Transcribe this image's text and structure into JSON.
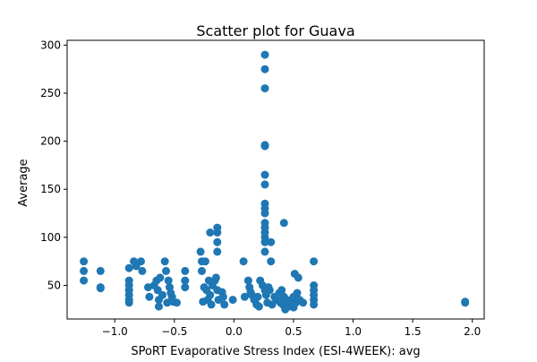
{
  "chart_data": {
    "type": "scatter",
    "title": "Scatter plot for Guava",
    "xlabel": "SPoRT Evaporative Stress Index (ESI-4WEEK): avg",
    "ylabel": "Average",
    "xlim": [
      -1.4,
      2.1
    ],
    "ylim": [
      15,
      305
    ],
    "xticks": [
      -1.0,
      -0.5,
      0.0,
      0.5,
      1.0,
      1.5,
      2.0
    ],
    "xtick_labels": [
      "−1.0",
      "−0.5",
      "0.0",
      "0.5",
      "1.0",
      "1.5",
      "2.0"
    ],
    "yticks": [
      50,
      100,
      150,
      200,
      250,
      300
    ],
    "ytick_labels": [
      "50",
      "100",
      "150",
      "200",
      "250",
      "300"
    ],
    "grid": false,
    "marker_color": "#1f77b4",
    "points": [
      {
        "x": -1.26,
        "y": 75
      },
      {
        "x": -1.26,
        "y": 65
      },
      {
        "x": -1.26,
        "y": 55
      },
      {
        "x": -1.12,
        "y": 65
      },
      {
        "x": -1.12,
        "y": 48
      },
      {
        "x": -1.12,
        "y": 47
      },
      {
        "x": -0.88,
        "y": 68
      },
      {
        "x": -0.88,
        "y": 55
      },
      {
        "x": -0.88,
        "y": 50
      },
      {
        "x": -0.88,
        "y": 45
      },
      {
        "x": -0.88,
        "y": 40
      },
      {
        "x": -0.88,
        "y": 35
      },
      {
        "x": -0.88,
        "y": 32
      },
      {
        "x": -0.84,
        "y": 75
      },
      {
        "x": -0.82,
        "y": 70
      },
      {
        "x": -0.78,
        "y": 75
      },
      {
        "x": -0.77,
        "y": 65
      },
      {
        "x": -0.72,
        "y": 48
      },
      {
        "x": -0.71,
        "y": 38
      },
      {
        "x": -0.67,
        "y": 50
      },
      {
        "x": -0.65,
        "y": 55
      },
      {
        "x": -0.64,
        "y": 45
      },
      {
        "x": -0.63,
        "y": 35
      },
      {
        "x": -0.63,
        "y": 28
      },
      {
        "x": -0.62,
        "y": 58
      },
      {
        "x": -0.6,
        "y": 40
      },
      {
        "x": -0.58,
        "y": 75
      },
      {
        "x": -0.57,
        "y": 65
      },
      {
        "x": -0.56,
        "y": 32
      },
      {
        "x": -0.55,
        "y": 55
      },
      {
        "x": -0.54,
        "y": 48
      },
      {
        "x": -0.53,
        "y": 42
      },
      {
        "x": -0.52,
        "y": 38
      },
      {
        "x": -0.51,
        "y": 33
      },
      {
        "x": -0.48,
        "y": 32
      },
      {
        "x": -0.41,
        "y": 65
      },
      {
        "x": -0.41,
        "y": 55
      },
      {
        "x": -0.41,
        "y": 48
      },
      {
        "x": -0.28,
        "y": 85
      },
      {
        "x": -0.27,
        "y": 75
      },
      {
        "x": -0.27,
        "y": 65
      },
      {
        "x": -0.26,
        "y": 33
      },
      {
        "x": -0.25,
        "y": 48
      },
      {
        "x": -0.24,
        "y": 75
      },
      {
        "x": -0.23,
        "y": 45
      },
      {
        "x": -0.22,
        "y": 35
      },
      {
        "x": -0.21,
        "y": 55
      },
      {
        "x": -0.2,
        "y": 105
      },
      {
        "x": -0.2,
        "y": 40
      },
      {
        "x": -0.19,
        "y": 30
      },
      {
        "x": -0.18,
        "y": 50
      },
      {
        "x": -0.16,
        "y": 55
      },
      {
        "x": -0.15,
        "y": 58
      },
      {
        "x": -0.14,
        "y": 110
      },
      {
        "x": -0.14,
        "y": 105
      },
      {
        "x": -0.14,
        "y": 95
      },
      {
        "x": -0.14,
        "y": 85
      },
      {
        "x": -0.14,
        "y": 45
      },
      {
        "x": -0.13,
        "y": 35
      },
      {
        "x": -0.1,
        "y": 43
      },
      {
        "x": -0.09,
        "y": 38
      },
      {
        "x": -0.08,
        "y": 30
      },
      {
        "x": -0.01,
        "y": 35
      },
      {
        "x": 0.08,
        "y": 75
      },
      {
        "x": 0.09,
        "y": 38
      },
      {
        "x": 0.12,
        "y": 55
      },
      {
        "x": 0.13,
        "y": 48
      },
      {
        "x": 0.14,
        "y": 43
      },
      {
        "x": 0.15,
        "y": 40
      },
      {
        "x": 0.17,
        "y": 35
      },
      {
        "x": 0.19,
        "y": 30
      },
      {
        "x": 0.2,
        "y": 38
      },
      {
        "x": 0.21,
        "y": 28
      },
      {
        "x": 0.22,
        "y": 55
      },
      {
        "x": 0.24,
        "y": 50
      },
      {
        "x": 0.26,
        "y": 290
      },
      {
        "x": 0.26,
        "y": 275
      },
      {
        "x": 0.26,
        "y": 255
      },
      {
        "x": 0.26,
        "y": 196
      },
      {
        "x": 0.26,
        "y": 195
      },
      {
        "x": 0.26,
        "y": 195
      },
      {
        "x": 0.26,
        "y": 165
      },
      {
        "x": 0.26,
        "y": 155
      },
      {
        "x": 0.26,
        "y": 135
      },
      {
        "x": 0.26,
        "y": 130
      },
      {
        "x": 0.26,
        "y": 125
      },
      {
        "x": 0.26,
        "y": 115
      },
      {
        "x": 0.26,
        "y": 110
      },
      {
        "x": 0.26,
        "y": 105
      },
      {
        "x": 0.26,
        "y": 100
      },
      {
        "x": 0.26,
        "y": 95
      },
      {
        "x": 0.26,
        "y": 85
      },
      {
        "x": 0.26,
        "y": 45
      },
      {
        "x": 0.27,
        "y": 40
      },
      {
        "x": 0.28,
        "y": 32
      },
      {
        "x": 0.29,
        "y": 48
      },
      {
        "x": 0.3,
        "y": 45
      },
      {
        "x": 0.31,
        "y": 95
      },
      {
        "x": 0.31,
        "y": 75
      },
      {
        "x": 0.32,
        "y": 30
      },
      {
        "x": 0.34,
        "y": 38
      },
      {
        "x": 0.36,
        "y": 35
      },
      {
        "x": 0.38,
        "y": 42
      },
      {
        "x": 0.39,
        "y": 32
      },
      {
        "x": 0.4,
        "y": 45
      },
      {
        "x": 0.41,
        "y": 30
      },
      {
        "x": 0.42,
        "y": 115
      },
      {
        "x": 0.42,
        "y": 38
      },
      {
        "x": 0.43,
        "y": 25
      },
      {
        "x": 0.44,
        "y": 35
      },
      {
        "x": 0.46,
        "y": 28
      },
      {
        "x": 0.48,
        "y": 35
      },
      {
        "x": 0.49,
        "y": 30
      },
      {
        "x": 0.5,
        "y": 27
      },
      {
        "x": 0.5,
        "y": 38
      },
      {
        "x": 0.51,
        "y": 62
      },
      {
        "x": 0.52,
        "y": 32
      },
      {
        "x": 0.53,
        "y": 42
      },
      {
        "x": 0.54,
        "y": 58
      },
      {
        "x": 0.55,
        "y": 35
      },
      {
        "x": 0.58,
        "y": 32
      },
      {
        "x": 0.67,
        "y": 75
      },
      {
        "x": 0.67,
        "y": 50
      },
      {
        "x": 0.67,
        "y": 45
      },
      {
        "x": 0.67,
        "y": 40
      },
      {
        "x": 0.67,
        "y": 35
      },
      {
        "x": 0.67,
        "y": 30
      },
      {
        "x": 1.94,
        "y": 33
      },
      {
        "x": 1.94,
        "y": 32
      }
    ]
  }
}
